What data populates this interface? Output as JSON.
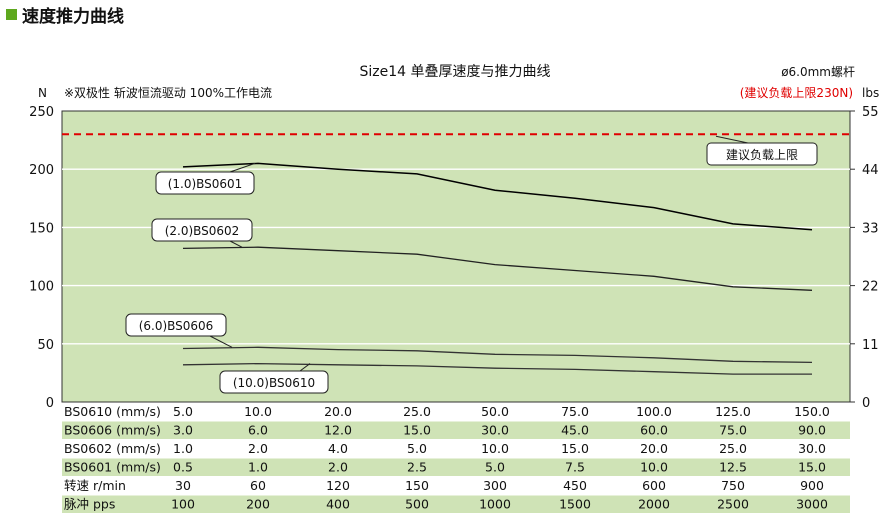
{
  "section_heading": "速度推力曲线",
  "colors": {
    "plot_bg": "#cfe3b6",
    "row_alt_bg": "#cfe3b6",
    "heading_marker": "#5ea81e",
    "reference_line": "#e00000",
    "reference_text": "#e00000"
  },
  "chart_data": {
    "type": "line",
    "title": "Size14 单叠厚速度与推力曲线",
    "subtitle": "※双极性 斩波恒流驱动 100%工作电流",
    "screw_note": "ø6.0mm螺杆",
    "ylabel_left": "N",
    "ylabel_right": "lbs",
    "ylim": [
      0,
      250
    ],
    "yticks_left": [
      "0",
      "50",
      "100",
      "150",
      "200",
      "250"
    ],
    "yticks_right": [
      "0",
      "11",
      "22",
      "33",
      "44",
      "55"
    ],
    "grid": true,
    "x_positions": 9,
    "reference_line": {
      "value": 230,
      "label": "建议负载上限",
      "note": "(建议负载上限230N)",
      "style": "dashed"
    },
    "series": [
      {
        "name": "(1.0)BS0601",
        "color": "#000000",
        "values": [
          202,
          205,
          200,
          196,
          182,
          175,
          167,
          153,
          148
        ]
      },
      {
        "name": "(2.0)BS0602",
        "color": "#222222",
        "values": [
          132,
          133,
          130,
          127,
          118,
          113,
          108,
          99,
          96
        ]
      },
      {
        "name": "(6.0)BS0606",
        "color": "#333333",
        "values": [
          46,
          47,
          45,
          44,
          41,
          40,
          38,
          35,
          34
        ]
      },
      {
        "name": "(10.0)BS0610",
        "color": "#333333",
        "values": [
          32,
          33,
          32,
          31,
          29,
          28,
          26,
          24,
          24
        ]
      }
    ],
    "table": {
      "rows": [
        {
          "label": "BS0610 (mm/s)",
          "values": [
            "5.0",
            "10.0",
            "20.0",
            "25.0",
            "50.0",
            "75.0",
            "100.0",
            "125.0",
            "150.0"
          ],
          "shaded": false
        },
        {
          "label": "BS0606 (mm/s)",
          "values": [
            "3.0",
            "6.0",
            "12.0",
            "15.0",
            "30.0",
            "45.0",
            "60.0",
            "75.0",
            "90.0"
          ],
          "shaded": true
        },
        {
          "label": "BS0602 (mm/s)",
          "values": [
            "1.0",
            "2.0",
            "4.0",
            "5.0",
            "10.0",
            "15.0",
            "20.0",
            "25.0",
            "30.0"
          ],
          "shaded": false
        },
        {
          "label": "BS0601 (mm/s)",
          "values": [
            "0.5",
            "1.0",
            "2.0",
            "2.5",
            "5.0",
            "7.5",
            "10.0",
            "12.5",
            "15.0"
          ],
          "shaded": true
        },
        {
          "label": "转速 r/min",
          "values": [
            "30",
            "60",
            "120",
            "150",
            "300",
            "450",
            "600",
            "750",
            "900"
          ],
          "shaded": false
        },
        {
          "label": "脉冲 pps",
          "values": [
            "100",
            "200",
            "400",
            "500",
            "1000",
            "1500",
            "2000",
            "2500",
            "3000"
          ],
          "shaded": true
        }
      ]
    }
  }
}
